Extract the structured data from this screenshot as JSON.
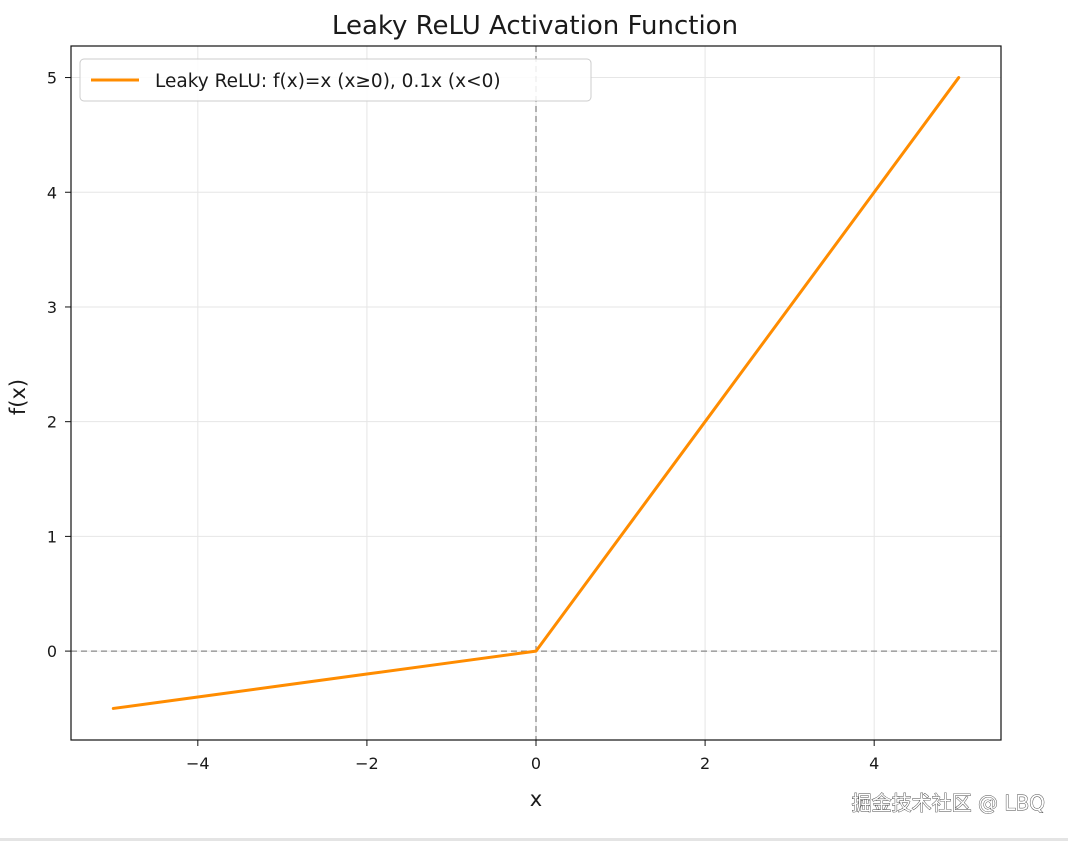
{
  "chart_data": {
    "type": "line",
    "title": "Leaky ReLU Activation Function",
    "xlabel": "x",
    "ylabel": "f(x)",
    "xlim": [
      -5.5,
      5.5
    ],
    "ylim": [
      -0.775,
      5.275
    ],
    "x_ticks": [
      -4,
      -2,
      0,
      2,
      4
    ],
    "x_tick_labels": [
      "−4",
      "−2",
      "0",
      "2",
      "4"
    ],
    "y_ticks": [
      0,
      1,
      2,
      3,
      4,
      5
    ],
    "y_tick_labels": [
      "0",
      "1",
      "2",
      "3",
      "4",
      "5"
    ],
    "grid": true,
    "legend_position": "top-left",
    "reference_lines": {
      "horizontal_y": 0,
      "vertical_x": 0,
      "style": "dashed",
      "color": "#888888"
    },
    "series": [
      {
        "name": "Leaky ReLU: f(x)=x (x≥0), 0.1x (x<0)",
        "color": "#ff8c00",
        "x": [
          -5,
          -4,
          -3,
          -2,
          -1,
          0,
          1,
          2,
          3,
          4,
          5
        ],
        "y": [
          -0.5,
          -0.4,
          -0.3,
          -0.2,
          -0.1,
          0,
          1,
          2,
          3,
          4,
          5
        ]
      }
    ]
  },
  "watermark": "掘金技术社区 @ LBQ"
}
